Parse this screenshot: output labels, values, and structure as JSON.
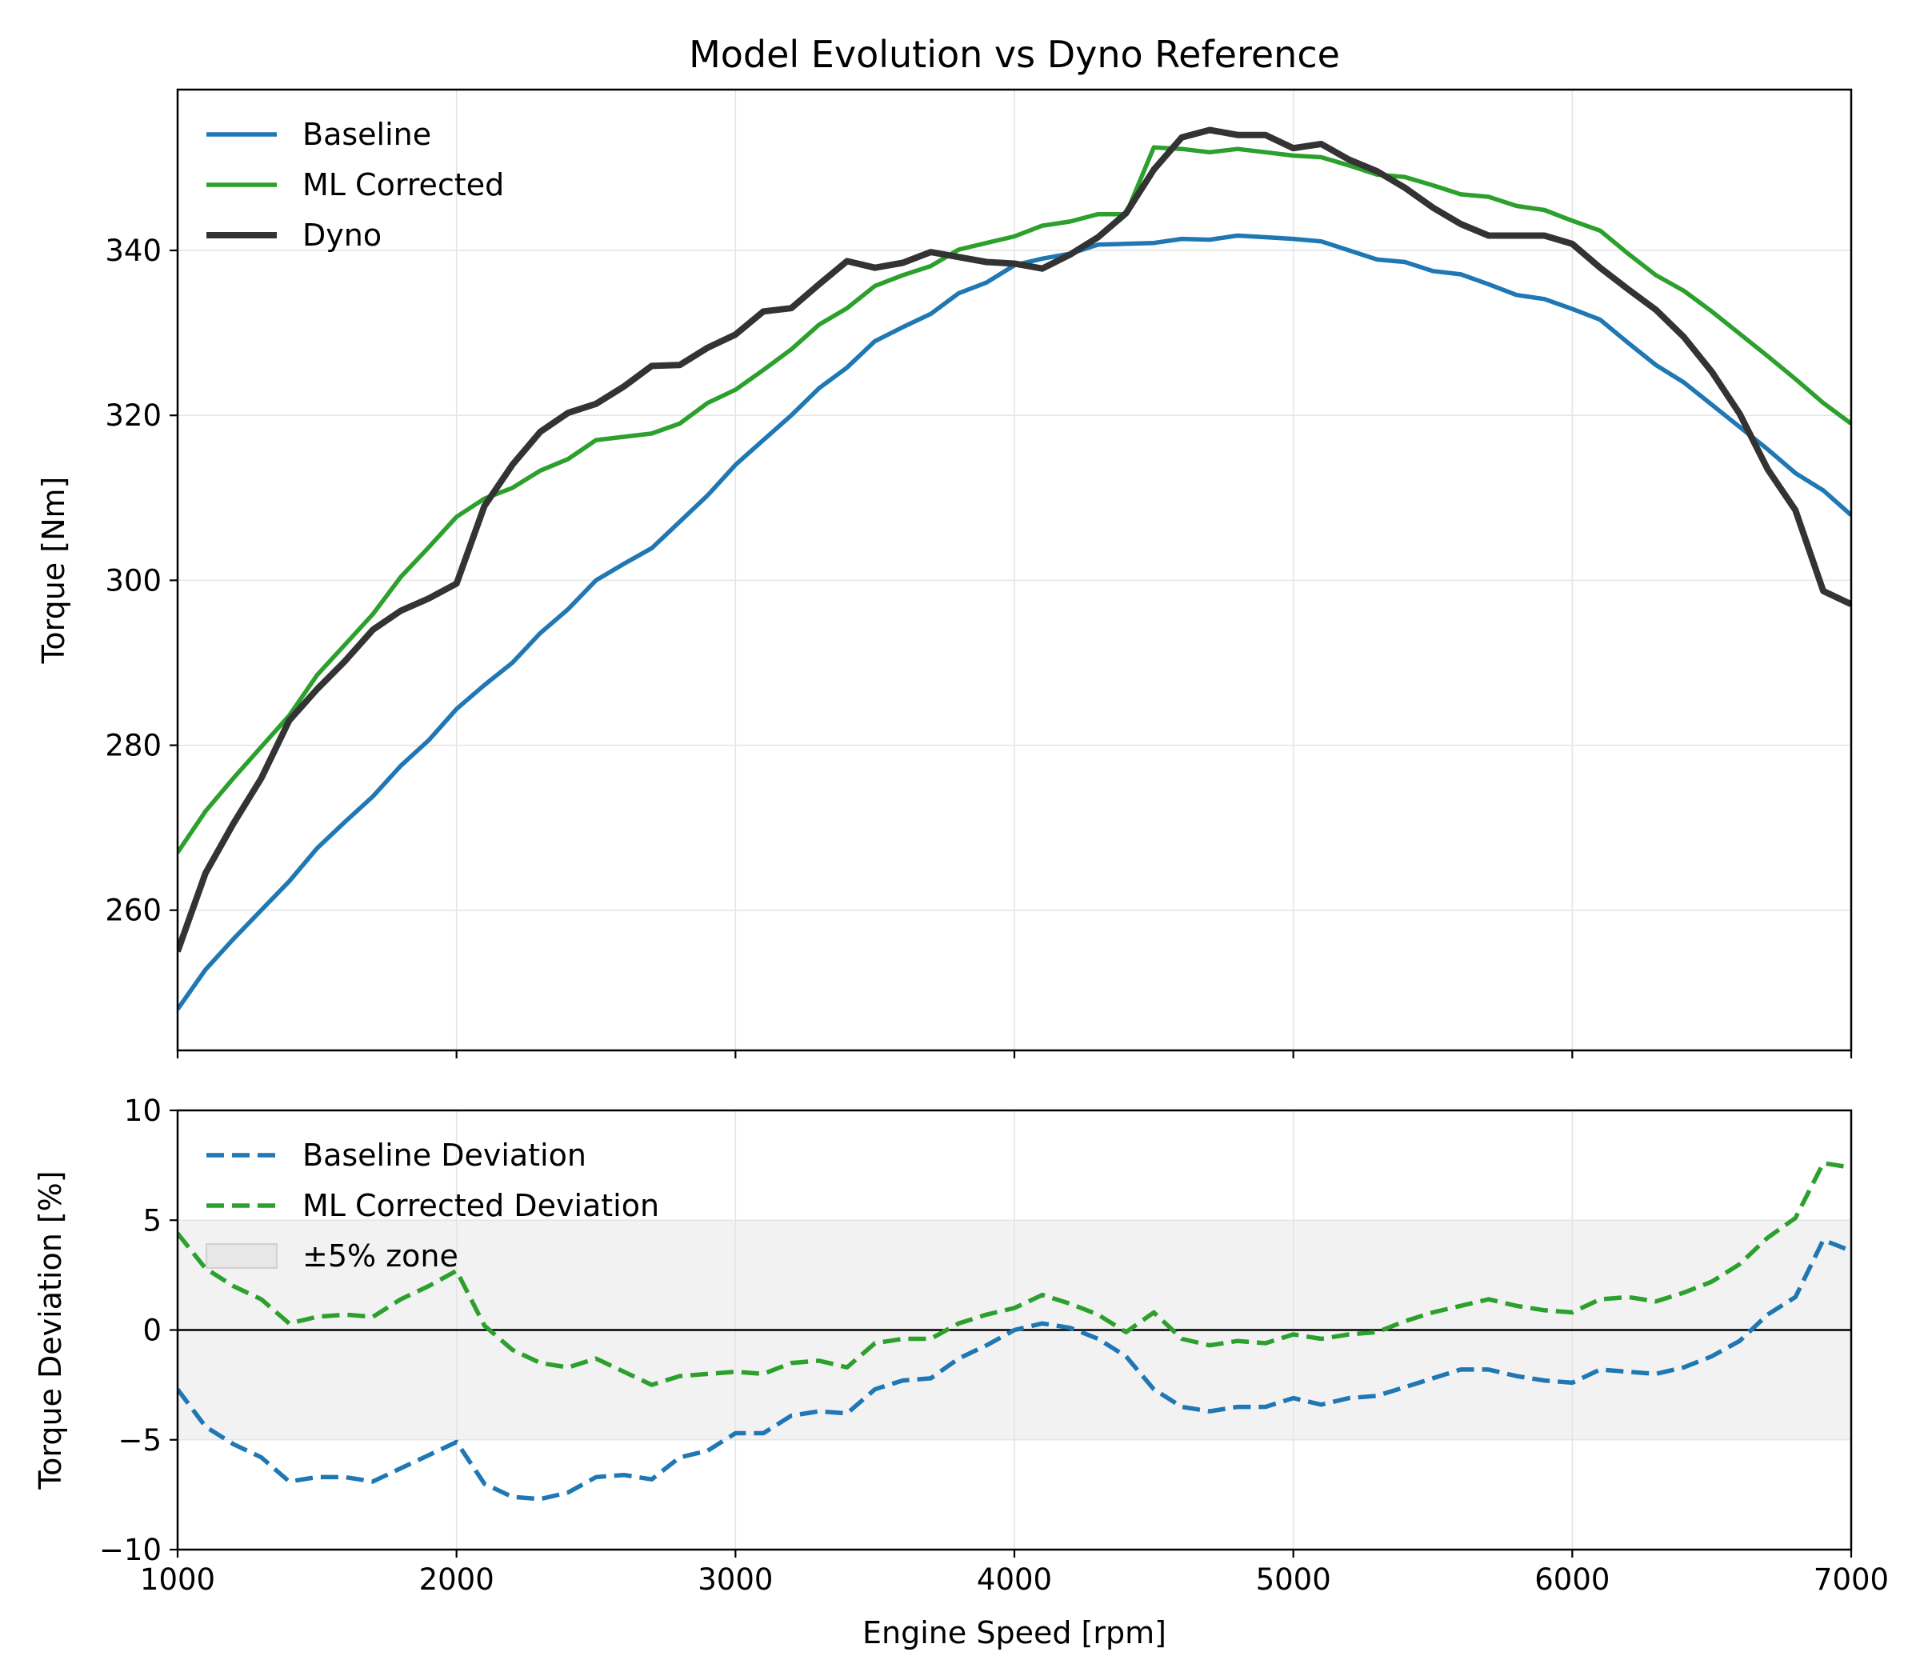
{
  "chart_data": [
    {
      "type": "line",
      "title": "Model Evolution vs Dyno Reference",
      "xlabel": "",
      "ylabel": "Torque [Nm]",
      "xlim": [
        1000,
        7000
      ],
      "ylim": [
        243,
        359.5
      ],
      "yticks": [
        260,
        280,
        300,
        320,
        340
      ],
      "xticks": [
        1000,
        2000,
        3000,
        4000,
        5000,
        6000,
        7000
      ],
      "grid": true,
      "legend": "top-left",
      "x": [
        1000,
        1100,
        1200,
        1300,
        1400,
        1500,
        1600,
        1700,
        1800,
        1900,
        2000,
        2100,
        2200,
        2300,
        2400,
        2500,
        2600,
        2700,
        2800,
        2900,
        3000,
        3100,
        3200,
        3300,
        3400,
        3500,
        3600,
        3700,
        3800,
        3900,
        4000,
        4100,
        4200,
        4300,
        4400,
        4500,
        4600,
        4700,
        4800,
        4900,
        5000,
        5100,
        5200,
        5300,
        5400,
        5500,
        5600,
        5700,
        5800,
        5900,
        6000,
        6100,
        6200,
        6300,
        6400,
        6500,
        6600,
        6700,
        6800,
        6900,
        7000
      ],
      "series": [
        {
          "name": "Baseline",
          "color": "#1f77b4",
          "values": [
            248.0,
            252.8,
            256.5,
            260.0,
            263.5,
            267.5,
            270.7,
            273.8,
            277.5,
            280.6,
            284.4,
            287.3,
            290.0,
            293.6,
            296.5,
            300.0,
            302.0,
            303.9,
            307.1,
            310.3,
            314.0,
            317.0,
            320.0,
            323.3,
            325.8,
            329.0,
            330.7,
            332.3,
            334.8,
            336.1,
            338.2,
            339.0,
            339.6,
            340.7,
            340.8,
            340.9,
            341.4,
            341.3,
            341.8,
            341.6,
            341.4,
            341.1,
            340.0,
            338.9,
            338.6,
            337.5,
            337.1,
            335.9,
            334.6,
            334.1,
            332.9,
            331.6,
            328.8,
            326.1,
            324.0,
            321.3,
            318.6,
            315.9,
            313.0,
            310.9,
            307.9
          ]
        },
        {
          "name": "ML Corrected",
          "color": "#2ca02c",
          "values": [
            267.0,
            272.0,
            276.0,
            279.8,
            283.6,
            288.5,
            292.2,
            295.9,
            300.4,
            304.0,
            307.7,
            309.9,
            311.2,
            313.3,
            314.7,
            317.0,
            317.4,
            317.8,
            319.0,
            321.5,
            323.1,
            325.5,
            328.0,
            331.0,
            333.0,
            335.7,
            337.0,
            338.1,
            340.1,
            340.9,
            341.7,
            343.0,
            343.5,
            344.4,
            344.4,
            352.5,
            352.3,
            351.9,
            352.3,
            351.9,
            351.5,
            351.3,
            350.3,
            349.2,
            348.9,
            347.9,
            346.8,
            346.5,
            345.4,
            344.9,
            343.6,
            342.4,
            339.6,
            337.0,
            335.1,
            332.6,
            329.9,
            327.2,
            324.4,
            321.5,
            319.0
          ]
        },
        {
          "name": "Dyno",
          "color": "#333333",
          "values": [
            255.0,
            264.5,
            270.5,
            276.0,
            283.0,
            286.8,
            290.2,
            294.0,
            296.3,
            297.8,
            299.6,
            309.0,
            314.0,
            318.0,
            320.3,
            321.4,
            323.5,
            326.0,
            326.1,
            328.2,
            329.8,
            332.6,
            333.0,
            335.9,
            338.7,
            337.9,
            338.5,
            339.8,
            339.2,
            338.6,
            338.4,
            337.8,
            339.5,
            341.6,
            344.5,
            349.8,
            353.7,
            354.6,
            354.0,
            354.0,
            352.4,
            352.9,
            351.0,
            349.6,
            347.6,
            345.2,
            343.2,
            341.8,
            341.8,
            341.8,
            340.8,
            337.9,
            335.3,
            332.8,
            329.5,
            325.3,
            320.2,
            313.5,
            308.5,
            298.7,
            297.1
          ]
        }
      ]
    },
    {
      "type": "line",
      "title": "",
      "xlabel": "Engine Speed [rpm]",
      "ylabel": "Torque Deviation [%]",
      "xlim": [
        1000,
        7000
      ],
      "ylim": [
        -10,
        10
      ],
      "yticks": [
        -10,
        -5,
        0,
        5,
        10
      ],
      "xticks": [
        1000,
        2000,
        3000,
        4000,
        5000,
        6000,
        7000
      ],
      "tick_labels": {
        "x": [
          "1000",
          "2000",
          "3000",
          "4000",
          "5000",
          "6000",
          "7000"
        ],
        "y": [
          "−10",
          "−5",
          "0",
          "5",
          "10"
        ]
      },
      "grid": true,
      "legend": "top-left",
      "band": {
        "name": "±5% zone",
        "range": [
          -5,
          5
        ],
        "color": "#d9d9d9"
      },
      "x": [
        1000,
        1100,
        1200,
        1300,
        1400,
        1500,
        1600,
        1700,
        1800,
        1900,
        2000,
        2100,
        2200,
        2300,
        2400,
        2500,
        2600,
        2700,
        2800,
        2900,
        3000,
        3100,
        3200,
        3300,
        3400,
        3500,
        3600,
        3700,
        3800,
        3900,
        4000,
        4100,
        4200,
        4300,
        4400,
        4500,
        4600,
        4700,
        4800,
        4900,
        5000,
        5100,
        5200,
        5300,
        5400,
        5500,
        5600,
        5700,
        5800,
        5900,
        6000,
        6100,
        6200,
        6300,
        6400,
        6500,
        6600,
        6700,
        6800,
        6900,
        7000
      ],
      "series": [
        {
          "name": "Baseline Deviation",
          "color": "#1f77b4",
          "dash": "dashed",
          "values": [
            -2.7,
            -4.4,
            -5.2,
            -5.8,
            -6.9,
            -6.7,
            -6.7,
            -6.9,
            -6.3,
            -5.7,
            -5.1,
            -7.0,
            -7.6,
            -7.7,
            -7.4,
            -6.7,
            -6.6,
            -6.8,
            -5.8,
            -5.5,
            -4.7,
            -4.7,
            -3.9,
            -3.7,
            -3.8,
            -2.7,
            -2.3,
            -2.2,
            -1.3,
            -0.7,
            0.0,
            0.3,
            0.1,
            -0.4,
            -1.2,
            -2.7,
            -3.5,
            -3.7,
            -3.5,
            -3.5,
            -3.1,
            -3.4,
            -3.1,
            -3.0,
            -2.6,
            -2.2,
            -1.8,
            -1.8,
            -2.1,
            -2.3,
            -2.4,
            -1.8,
            -1.9,
            -2.0,
            -1.7,
            -1.2,
            -0.5,
            0.7,
            1.5,
            4.1,
            3.6
          ]
        },
        {
          "name": "ML Corrected Deviation",
          "color": "#2ca02c",
          "dash": "dashed",
          "values": [
            4.4,
            2.8,
            2.0,
            1.4,
            0.3,
            0.6,
            0.7,
            0.6,
            1.4,
            2.0,
            2.7,
            0.2,
            -0.9,
            -1.5,
            -1.7,
            -1.3,
            -1.9,
            -2.5,
            -2.1,
            -2.0,
            -1.9,
            -2.0,
            -1.5,
            -1.4,
            -1.7,
            -0.6,
            -0.4,
            -0.4,
            0.3,
            0.7,
            1.0,
            1.6,
            1.2,
            0.7,
            -0.1,
            0.8,
            -0.4,
            -0.7,
            -0.5,
            -0.6,
            -0.2,
            -0.4,
            -0.2,
            -0.1,
            0.4,
            0.8,
            1.1,
            1.4,
            1.1,
            0.9,
            0.8,
            1.4,
            1.5,
            1.3,
            1.7,
            2.2,
            3.0,
            4.2,
            5.1,
            7.6,
            7.4
          ]
        }
      ]
    }
  ]
}
